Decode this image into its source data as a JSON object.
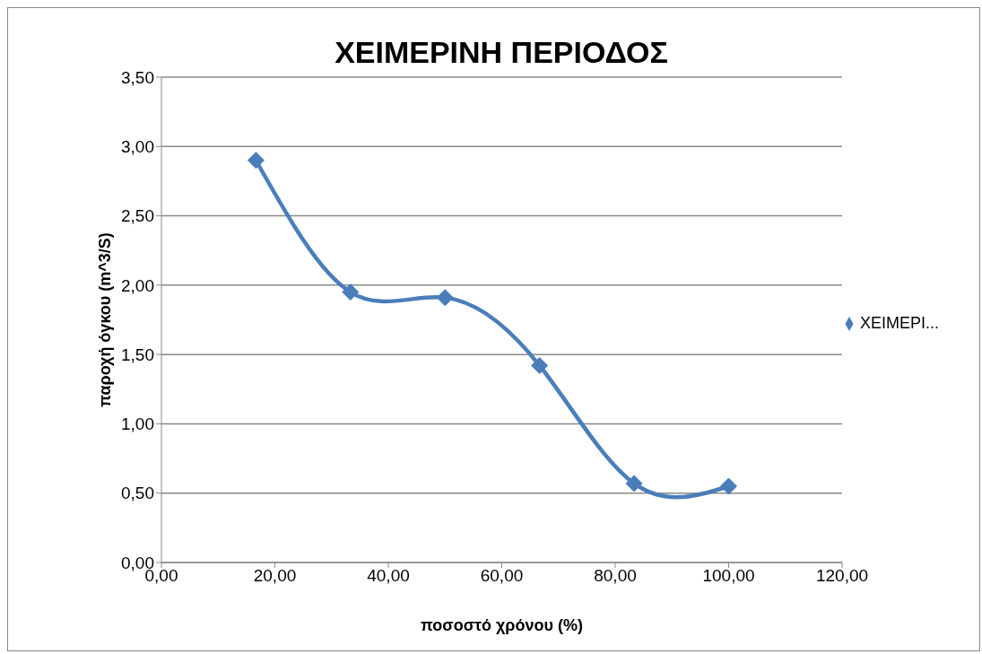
{
  "chart_data": {
    "type": "line",
    "title": "ΧΕΙΜΕΡΙΝΗ ΠΕΡΙΟΔΟΣ",
    "xlabel": "ποσοστό χρόνου (%)",
    "ylabel": "παροχή όγκου (m^3/S)",
    "x": [
      16.67,
      33.33,
      50,
      66.67,
      83.33,
      100
    ],
    "series": [
      {
        "name": "ΧΕΙΜΕΡΙ...",
        "color": "#4a7ebb",
        "values": [
          2.9,
          1.95,
          1.91,
          1.42,
          0.57,
          0.55
        ]
      }
    ],
    "xlim": [
      0,
      120
    ],
    "xticks": [
      {
        "value": 0,
        "label": "0,00"
      },
      {
        "value": 20,
        "label": "20,00"
      },
      {
        "value": 40,
        "label": "40,00"
      },
      {
        "value": 60,
        "label": "60,00"
      },
      {
        "value": 80,
        "label": "80,00"
      },
      {
        "value": 100,
        "label": "100,00"
      },
      {
        "value": 120,
        "label": "120,00"
      }
    ],
    "ylim": [
      0,
      3.5
    ],
    "yticks": [
      {
        "value": 0,
        "label": "0,00"
      },
      {
        "value": 0.5,
        "label": "0,50"
      },
      {
        "value": 1,
        "label": "1,00"
      },
      {
        "value": 1.5,
        "label": "1,50"
      },
      {
        "value": 2,
        "label": "2,00"
      },
      {
        "value": 2.5,
        "label": "2,50"
      },
      {
        "value": 3,
        "label": "3,00"
      },
      {
        "value": 3.5,
        "label": "3,50"
      }
    ],
    "grid": "y",
    "legend": "right",
    "marker": "diamond",
    "line_style": "solid"
  }
}
